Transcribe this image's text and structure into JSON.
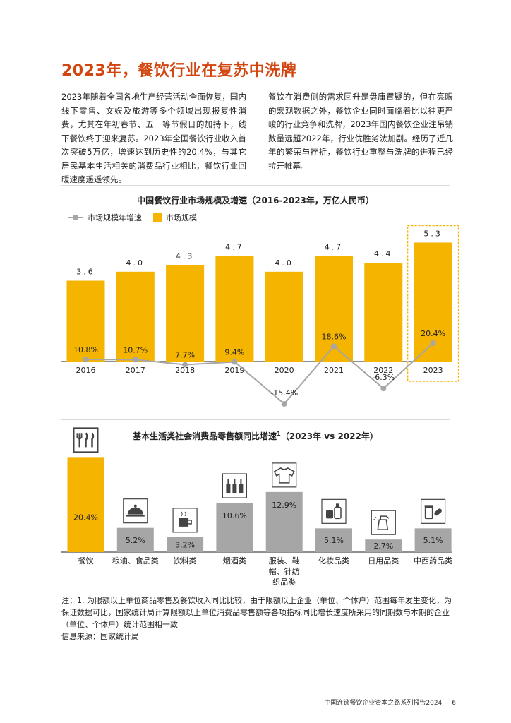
{
  "page": {
    "title": "2023年，餐饮行业在复苏中洗牌",
    "paragraph_left": "2023年随着全国各地生产经营活动全面恢复，国内线下零售、文娱及旅游等多个领域出现报复性消费，尤其在年初春节、五一等节假日的加持下，线下餐饮终于迎来复苏。2023年全国餐饮行业收入首次突破5万亿，增速达到历史性的20.4%，与其它居民基本生活相关的消费品行业相比，餐饮行业回暖速度遥遥领先。",
    "paragraph_right": "餐饮在消费侧的需求回升是毋庸置疑的，但在亮眼的宏观数据之外，餐饮企业同时面临着比以往更严峻的行业竞争和洗牌，2023年国内餐饮企业注吊销数量远超2022年，行业优胜劣汰加剧。经历了近几年的繁荣与挫折，餐饮行业重整与洗牌的进程已经拉开帷幕。",
    "note": "注：1. 为限额以上单位商品零售及餐饮收入同比比较，由于限额以上企业（单位、个体户）范围每年发生变化，为保证数据可比，国家统计局计算限额以上单位消费品零售额等各项指标同比增长速度所采用的同期数与本期的企业（单位、个体户）统计范围相一致",
    "source": "信息来源：国家统计局",
    "footer_text": "中国连锁餐饮企业资本之路系列报告2024",
    "page_number": "6"
  },
  "chart_data": [
    {
      "type": "bar+line",
      "title": "中国餐饮行业市场规模及增速（2016-2023年，万亿人民币）",
      "categories": [
        "2016",
        "2017",
        "2018",
        "2019",
        "2020",
        "2021",
        "2022",
        "2023"
      ],
      "series": [
        {
          "name": "市场规模",
          "type": "bar",
          "values": [
            3.6,
            4.0,
            4.3,
            4.7,
            4.0,
            4.7,
            4.4,
            5.3
          ],
          "labels": [
            "3.6",
            "4.0",
            "4.3",
            "4.7",
            "4.0",
            "4.7",
            "4.4",
            "5.3"
          ]
        },
        {
          "name": "市场规模年增速",
          "type": "line",
          "values": [
            10.8,
            10.7,
            7.7,
            9.4,
            -15.4,
            18.6,
            -6.3,
            20.4
          ],
          "labels": [
            "10.8%",
            "10.7%",
            "7.7%",
            "9.4%",
            "-15.4%",
            "18.6%",
            "-6.3%",
            "20.4%"
          ]
        }
      ],
      "highlight": "2023",
      "legend_position": "top-left",
      "colors": {
        "bar": "#F5B400",
        "line": "#A6A6A6",
        "highlight_border": "#F5B400"
      }
    },
    {
      "type": "bar",
      "title": "基本生活类社会消费品零售额同比增速",
      "title_sup": "1",
      "title_suffix": "（2023年 vs 2022年）",
      "categories": [
        "餐饮",
        "粮油、食品类",
        "饮料类",
        "烟酒类",
        "服装、鞋帽、针纺织品类",
        "化妆品类",
        "日用品类",
        "中西药品类"
      ],
      "category_lines": [
        [
          "餐饮"
        ],
        [
          "粮油、食品类"
        ],
        [
          "饮料类"
        ],
        [
          "烟酒类"
        ],
        [
          "服装、鞋",
          "帽、针纺",
          "织品类"
        ],
        [
          "化妆品类"
        ],
        [
          "日用品类"
        ],
        [
          "中西药品类"
        ]
      ],
      "values": [
        20.4,
        5.2,
        3.2,
        10.6,
        12.9,
        5.1,
        2.7,
        5.1
      ],
      "labels": [
        "20.4%",
        "5.2%",
        "3.2%",
        "10.6%",
        "12.9%",
        "5.1%",
        "2.7%",
        "5.1%"
      ],
      "icons": [
        "cutlery-icon",
        "cloche-icon",
        "coffee-cup-icon",
        "bottles-icon",
        "tshirt-icon",
        "cosmetics-icon",
        "spray-bottle-icon",
        "medicine-icon"
      ],
      "colors": {
        "highlight": "#F5B400",
        "other": "#A6A6A6"
      }
    }
  ]
}
